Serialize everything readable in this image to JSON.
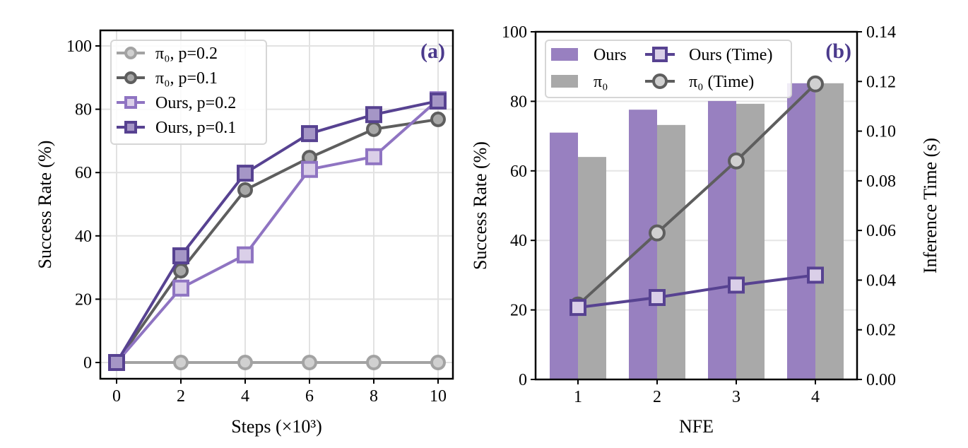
{
  "chart_data": [
    {
      "type": "line",
      "panel_label": "(a)",
      "xlabel": "Steps (×10³)",
      "ylabel": "Success Rate (%)",
      "x": [
        0,
        2,
        4,
        6,
        8,
        10
      ],
      "xticks": [
        "0",
        "2",
        "4",
        "6",
        "8",
        "10"
      ],
      "yticks": [
        "0",
        "20",
        "40",
        "60",
        "80",
        "100"
      ],
      "xlim": [
        -0.5,
        10.5
      ],
      "ylim": [
        -5,
        105
      ],
      "grid": true,
      "legend": "top-left",
      "series": [
        {
          "name": "π₀, p=0.2",
          "marker": "circle",
          "color": "#a3a3a3",
          "fill": "#d0d0d0",
          "values": [
            0,
            0,
            0,
            0,
            0,
            0
          ]
        },
        {
          "name": "π₀, p=0.1",
          "marker": "circle",
          "color": "#5e5e5e",
          "fill": "#a8a8a8",
          "values": [
            0,
            29,
            54.5,
            64.7,
            73.7,
            76.8
          ]
        },
        {
          "name": "Ours, p=0.2",
          "marker": "square",
          "color": "#8f74c2",
          "fill": "#dacfe8",
          "values": [
            0,
            23.5,
            34,
            61,
            65,
            83
          ]
        },
        {
          "name": "Ours, p=0.1",
          "marker": "square",
          "color": "#574291",
          "fill": "#a596c6",
          "values": [
            0,
            33.7,
            59.8,
            72.3,
            78.3,
            82.6
          ]
        }
      ]
    },
    {
      "type": "bar",
      "panel_label": "(b)",
      "xlabel": "NFE",
      "ylabel": "Success Rate (%)",
      "y2label": "Inference Time (s)",
      "categories": [
        "1",
        "2",
        "3",
        "4"
      ],
      "yticks": [
        "0",
        "20",
        "40",
        "60",
        "80",
        "100"
      ],
      "y2ticks": [
        "0.00",
        "0.02",
        "0.04",
        "0.06",
        "0.08",
        "0.10",
        "0.12",
        "0.14"
      ],
      "ylim": [
        0,
        100
      ],
      "y2lim": [
        0,
        0.14
      ],
      "grid": true,
      "legend": "top-left",
      "bar_series": [
        {
          "name": "Ours",
          "color": "#9880c0",
          "values": [
            71,
            77.6,
            80.1,
            85.2
          ]
        },
        {
          "name": "π₀",
          "color": "#a9a9a9",
          "values": [
            64,
            73.2,
            79.3,
            85.2
          ]
        }
      ],
      "line_series": [
        {
          "name": "Ours (Time)",
          "axis": "right",
          "marker": "square",
          "color": "#574291",
          "fill": "#dacfe8",
          "values": [
            0.029,
            0.033,
            0.038,
            0.042
          ]
        },
        {
          "name": "π₀ (Time)",
          "axis": "right",
          "marker": "circle",
          "color": "#5e5e5e",
          "fill": "#d0d0d0",
          "values": [
            0.03,
            0.059,
            0.088,
            0.119
          ]
        }
      ]
    }
  ]
}
